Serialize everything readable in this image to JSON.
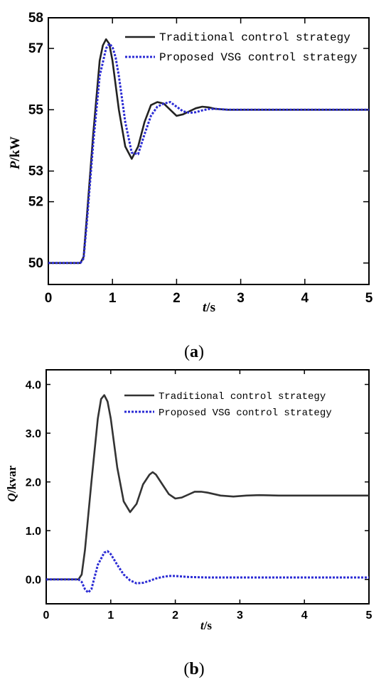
{
  "chart_data": [
    {
      "type": "line",
      "panel_label": "a",
      "xlabel_var": "t",
      "xlabel_unit": "/s",
      "ylabel_var": "P",
      "ylabel_unit": "/kW",
      "xlim": [
        0,
        5
      ],
      "ylim": [
        49.3,
        58
      ],
      "xticks": [
        0,
        1,
        2,
        3,
        4,
        5
      ],
      "yticks": [
        50,
        52,
        53,
        55,
        57,
        58
      ],
      "ytick_labels": [
        "50",
        "52",
        "53",
        "55",
        "57",
        "58"
      ],
      "grid": false,
      "legend_position": "top-right",
      "series": [
        {
          "name": "Traditional control strategy",
          "color": "#222222",
          "style": "solid",
          "x": [
            0,
            0.5,
            0.55,
            0.6,
            0.7,
            0.8,
            0.85,
            0.9,
            0.95,
            1.0,
            1.1,
            1.2,
            1.3,
            1.4,
            1.5,
            1.6,
            1.7,
            1.8,
            1.9,
            2.0,
            2.1,
            2.2,
            2.3,
            2.4,
            2.5,
            2.6,
            2.8,
            3.0,
            3.5,
            4.0,
            4.5,
            5.0
          ],
          "y": [
            50.0,
            50.0,
            50.2,
            51.5,
            54.2,
            56.6,
            57.1,
            57.3,
            57.15,
            56.6,
            55.0,
            53.8,
            53.4,
            53.8,
            54.6,
            55.15,
            55.25,
            55.2,
            55.0,
            54.8,
            54.85,
            54.95,
            55.05,
            55.1,
            55.08,
            55.03,
            55.0,
            55.0,
            55.0,
            55.0,
            55.0,
            55.0
          ]
        },
        {
          "name": "Proposed VSG control strategy",
          "color": "#2b2bd4",
          "style": "dotted",
          "x": [
            0,
            0.5,
            0.55,
            0.6,
            0.7,
            0.8,
            0.9,
            0.95,
            1.0,
            1.05,
            1.1,
            1.2,
            1.3,
            1.4,
            1.5,
            1.6,
            1.7,
            1.8,
            1.9,
            2.0,
            2.1,
            2.2,
            2.3,
            2.4,
            2.5,
            2.6,
            2.8,
            3.0,
            3.5,
            4.0,
            4.5,
            5.0
          ],
          "y": [
            50.0,
            50.0,
            50.15,
            51.3,
            53.9,
            56.1,
            57.0,
            57.15,
            57.05,
            56.7,
            56.1,
            54.6,
            53.6,
            53.55,
            54.2,
            54.8,
            55.1,
            55.2,
            55.25,
            55.1,
            54.95,
            54.9,
            54.92,
            54.98,
            55.02,
            55.03,
            55.0,
            55.0,
            55.0,
            55.0,
            55.0,
            55.0
          ]
        }
      ]
    },
    {
      "type": "line",
      "panel_label": "b",
      "xlabel_var": "t",
      "xlabel_unit": "/s",
      "ylabel_var": "Q",
      "ylabel_unit": "/kvar",
      "xlim": [
        0,
        5
      ],
      "ylim": [
        -0.5,
        4.3
      ],
      "xticks": [
        0,
        1,
        2,
        3,
        4,
        5
      ],
      "yticks": [
        0.0,
        1.0,
        2.0,
        3.0,
        4.0
      ],
      "ytick_labels": [
        "0.0",
        "1.0",
        "2.0",
        "3.0",
        "4.0"
      ],
      "grid": false,
      "legend_position": "top-right",
      "series": [
        {
          "name": "Traditional control strategy",
          "color": "#333333",
          "style": "solid",
          "x": [
            0,
            0.5,
            0.55,
            0.6,
            0.7,
            0.8,
            0.85,
            0.9,
            0.95,
            1.0,
            1.1,
            1.2,
            1.3,
            1.4,
            1.5,
            1.6,
            1.65,
            1.7,
            1.8,
            1.9,
            2.0,
            2.1,
            2.2,
            2.3,
            2.4,
            2.5,
            2.7,
            2.9,
            3.1,
            3.3,
            3.6,
            4.0,
            4.5,
            5.0
          ],
          "y": [
            0.0,
            0.0,
            0.1,
            0.6,
            2.0,
            3.3,
            3.7,
            3.78,
            3.65,
            3.3,
            2.3,
            1.6,
            1.38,
            1.55,
            1.95,
            2.15,
            2.2,
            2.15,
            1.95,
            1.75,
            1.66,
            1.68,
            1.74,
            1.8,
            1.8,
            1.78,
            1.72,
            1.7,
            1.72,
            1.73,
            1.72,
            1.72,
            1.72,
            1.72
          ]
        },
        {
          "name": "Proposed VSG control strategy",
          "color": "#2b2bd4",
          "style": "dotted",
          "x": [
            0,
            0.5,
            0.55,
            0.6,
            0.65,
            0.7,
            0.75,
            0.8,
            0.9,
            0.95,
            1.0,
            1.1,
            1.2,
            1.3,
            1.4,
            1.5,
            1.6,
            1.7,
            1.8,
            1.9,
            2.0,
            2.2,
            2.5,
            3.0,
            3.5,
            4.0,
            4.5,
            5.0
          ],
          "y": [
            0.0,
            0.0,
            -0.05,
            -0.2,
            -0.27,
            -0.2,
            0.05,
            0.3,
            0.55,
            0.58,
            0.52,
            0.3,
            0.1,
            -0.02,
            -0.08,
            -0.07,
            -0.03,
            0.02,
            0.05,
            0.07,
            0.07,
            0.05,
            0.04,
            0.04,
            0.04,
            0.04,
            0.04,
            0.04
          ]
        }
      ]
    }
  ]
}
